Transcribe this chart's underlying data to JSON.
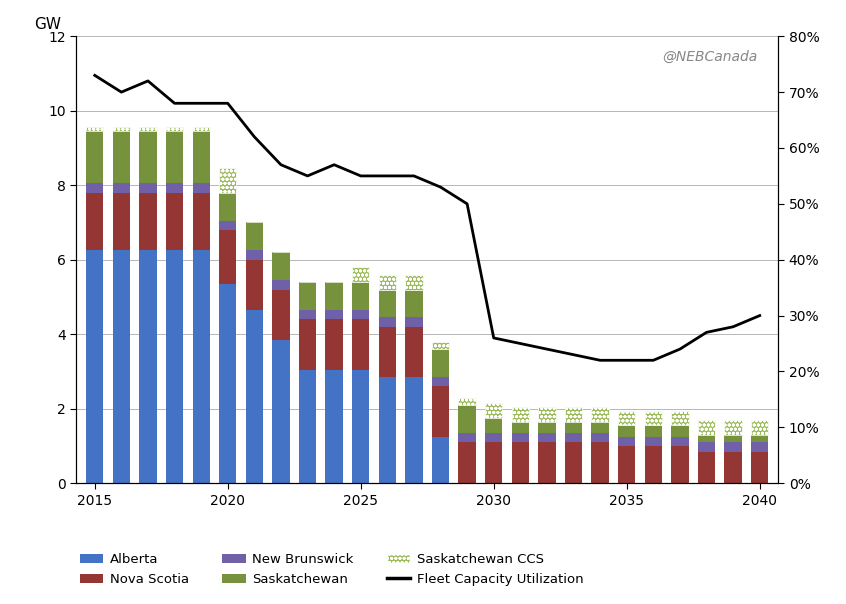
{
  "years": [
    2015,
    2016,
    2017,
    2018,
    2019,
    2020,
    2021,
    2022,
    2023,
    2024,
    2025,
    2026,
    2027,
    2028,
    2029,
    2030,
    2031,
    2032,
    2033,
    2034,
    2035,
    2036,
    2037,
    2038,
    2039,
    2040
  ],
  "alberta": [
    6.25,
    6.25,
    6.25,
    6.25,
    6.25,
    5.35,
    4.65,
    3.85,
    3.05,
    3.05,
    3.05,
    2.85,
    2.85,
    1.25,
    0.0,
    0.0,
    0.0,
    0.0,
    0.0,
    0.0,
    0.0,
    0.0,
    0.0,
    0.0,
    0.0,
    0.0
  ],
  "nova_scotia": [
    1.55,
    1.55,
    1.55,
    1.55,
    1.55,
    1.45,
    1.35,
    1.35,
    1.35,
    1.35,
    1.35,
    1.35,
    1.35,
    1.35,
    1.1,
    1.1,
    1.1,
    1.1,
    1.1,
    1.1,
    1.0,
    1.0,
    1.0,
    0.85,
    0.85,
    0.85
  ],
  "new_brunswick": [
    0.25,
    0.25,
    0.25,
    0.25,
    0.25,
    0.25,
    0.25,
    0.25,
    0.25,
    0.25,
    0.25,
    0.25,
    0.25,
    0.25,
    0.25,
    0.25,
    0.25,
    0.25,
    0.25,
    0.25,
    0.25,
    0.25,
    0.25,
    0.25,
    0.25,
    0.25
  ],
  "saskatchewan": [
    1.4,
    1.4,
    1.4,
    1.4,
    1.4,
    0.75,
    0.75,
    0.75,
    0.75,
    0.75,
    0.75,
    0.75,
    0.75,
    0.75,
    0.75,
    0.4,
    0.3,
    0.3,
    0.3,
    0.3,
    0.3,
    0.3,
    0.3,
    0.2,
    0.2,
    0.2
  ],
  "saskatchewan_ccs": [
    0.1,
    0.1,
    0.1,
    0.1,
    0.1,
    0.65,
    0.0,
    0.0,
    0.0,
    0.0,
    0.4,
    0.4,
    0.4,
    0.2,
    0.2,
    0.4,
    0.4,
    0.4,
    0.4,
    0.4,
    0.4,
    0.4,
    0.4,
    0.4,
    0.4,
    0.4
  ],
  "fleet_utilization": [
    73,
    70,
    72,
    68,
    68,
    68,
    62,
    57,
    55,
    57,
    55,
    55,
    55,
    53,
    50,
    26,
    25,
    24,
    23,
    22,
    22,
    22,
    24,
    27,
    28,
    30
  ],
  "colors": {
    "alberta": "#4472C4",
    "nova_scotia": "#943634",
    "new_brunswick": "#7060A8",
    "saskatchewan": "#76923C",
    "line": "#000000"
  },
  "ylim_left": [
    0,
    12
  ],
  "ylim_right": [
    0,
    80
  ],
  "ylabel_left": "GW",
  "yticks_left": [
    0,
    2,
    4,
    6,
    8,
    10,
    12
  ],
  "yticks_right": [
    0,
    10,
    20,
    30,
    40,
    50,
    60,
    70,
    80
  ],
  "yticks_right_labels": [
    "0%",
    "10%",
    "20%",
    "30%",
    "40%",
    "50%",
    "60%",
    "70%",
    "80%"
  ],
  "xticks": [
    2015,
    2020,
    2025,
    2030,
    2035,
    2040
  ],
  "watermark": "@NEBCanada",
  "bar_width": 0.65
}
